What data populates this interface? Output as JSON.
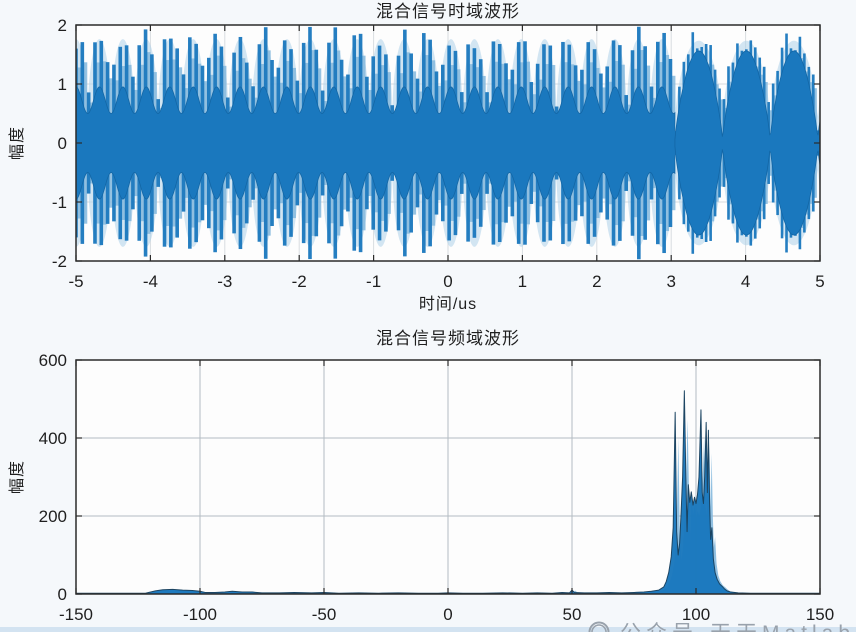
{
  "page": {
    "watermark": {
      "icon": "wechat-official-account-icon",
      "text": "公众号·天天Matlab"
    }
  },
  "colors": {
    "main_blue": "#1a78be",
    "deep_blue": "#1366a5",
    "light_blue": "#85b9de",
    "halo_blue": "#aed2ea",
    "dark_line": "#16405f",
    "grid": "#b4bbc2",
    "grid_faint": "#d8dce0",
    "axis": "#2b2b2b",
    "text": "#1f1f1f",
    "plot_bg": "#fdfdfd",
    "page_bg": "#f5f8fb",
    "bottom_strip": "#d3e3f1",
    "watermark": "#99a2ac"
  },
  "chart_data": [
    {
      "type": "line",
      "id": "time-domain",
      "title": "混合信号时域波形",
      "xlabel": "时间/us",
      "ylabel": "幅度",
      "xlim": [
        -5,
        5
      ],
      "ylim": [
        -2,
        2
      ],
      "xticks": [
        -5,
        -4,
        -3,
        -2,
        -1,
        0,
        1,
        2,
        3,
        4,
        5
      ],
      "yticks": [
        -2,
        -1,
        0,
        1,
        2
      ],
      "grid": true,
      "signal": {
        "description": "dense multi-component beat waveform, amplitude swings between -2 and 2; fast narrow beat lobes from -5us to ~3us, three wide pulse lobes from ~3us to 5us",
        "sections": [
          {
            "t0": -5,
            "t1": 3.05,
            "lobe_period": 0.315,
            "phase": 1.5708,
            "outer": {
              "base": 0.45,
              "amp": 1.55,
              "exp": 0.45
            },
            "solid": {
              "base": 0.5,
              "amp": 0.45,
              "exp": 2.0
            },
            "stripe_period": 0.085,
            "stripe_width": 3.6
          },
          {
            "t0": 3.05,
            "t1": 5,
            "lobe_period": 0.64,
            "phase": 0,
            "outer": {
              "base": 0.25,
              "amp": 1.72,
              "exp": 0.5
            },
            "solid": {
              "base": 0.06,
              "amp": 1.5,
              "exp": 0.8
            },
            "stripe_period": 0.06,
            "stripe_width": 2.6
          }
        ]
      }
    },
    {
      "type": "line",
      "id": "frequency-domain",
      "title": "混合信号频域波形",
      "xlabel": "",
      "ylabel": "幅度",
      "xlim": [
        -150,
        150
      ],
      "ylim": [
        0,
        600
      ],
      "xticks": [
        -150,
        -100,
        -50,
        0,
        50,
        100,
        150
      ],
      "yticks": [
        0,
        200,
        400,
        600
      ],
      "grid": true,
      "peaks": [
        {
          "freq": 91.6,
          "amp": 466
        },
        {
          "freq": 95.3,
          "amp": 521
        },
        {
          "freq": 102.0,
          "amp": 472
        },
        {
          "freq": 104.1,
          "amp": 440
        },
        {
          "freq": 104.9,
          "amp": 420
        }
      ],
      "series": [
        {
          "name": "spectrum",
          "points": [
            [
              -150,
              2
            ],
            [
              -122,
              2
            ],
            [
              -118,
              8
            ],
            [
              -115,
              11
            ],
            [
              -111,
              12
            ],
            [
              -107,
              10
            ],
            [
              -103,
              9
            ],
            [
              -100,
              7
            ],
            [
              -98,
              4
            ],
            [
              -94,
              4
            ],
            [
              -90,
              5
            ],
            [
              -87,
              7
            ],
            [
              -83,
              5
            ],
            [
              -79,
              5
            ],
            [
              -75,
              3
            ],
            [
              -68,
              3
            ],
            [
              -62,
              4
            ],
            [
              -55,
              3
            ],
            [
              -50,
              4
            ],
            [
              -44,
              2
            ],
            [
              -36,
              3
            ],
            [
              -28,
              2
            ],
            [
              -20,
              3
            ],
            [
              -12,
              2
            ],
            [
              -4,
              2
            ],
            [
              0,
              3
            ],
            [
              6,
              2
            ],
            [
              14,
              2
            ],
            [
              22,
              3
            ],
            [
              30,
              2
            ],
            [
              36,
              3
            ],
            [
              42,
              2
            ],
            [
              46,
              4
            ],
            [
              49,
              3
            ],
            [
              50,
              10
            ],
            [
              51,
              4
            ],
            [
              55,
              3
            ],
            [
              60,
              3
            ],
            [
              65,
              4
            ],
            [
              70,
              3
            ],
            [
              75,
              4
            ],
            [
              79,
              5
            ],
            [
              82,
              7
            ],
            [
              85,
              10
            ],
            [
              87,
              18
            ],
            [
              88,
              32
            ],
            [
              89,
              55
            ],
            [
              90,
              95
            ],
            [
              90.8,
              170
            ],
            [
              91.6,
              466
            ],
            [
              92.2,
              160
            ],
            [
              92.8,
              100
            ],
            [
              93.4,
              130
            ],
            [
              94,
              210
            ],
            [
              94.6,
              300
            ],
            [
              95.3,
              521
            ],
            [
              95.9,
              300
            ],
            [
              96.4,
              160
            ],
            [
              96.9,
              280
            ],
            [
              97.5,
              235
            ],
            [
              98.1,
              262
            ],
            [
              98.8,
              228
            ],
            [
              99.4,
              248
            ],
            [
              100,
              232
            ],
            [
              100.6,
              255
            ],
            [
              101.2,
              300
            ],
            [
              102,
              472
            ],
            [
              102.5,
              260
            ],
            [
              103,
              232
            ],
            [
              103.5,
              300
            ],
            [
              104.1,
              440
            ],
            [
              104.6,
              260
            ],
            [
              105,
              420
            ],
            [
              105.5,
              230
            ],
            [
              105.9,
              140
            ],
            [
              106.4,
              170
            ],
            [
              107,
              90
            ],
            [
              107.7,
              55
            ],
            [
              108.5,
              38
            ],
            [
              109.5,
              26
            ],
            [
              110.5,
              20
            ],
            [
              111.5,
              13
            ],
            [
              112.5,
              8
            ],
            [
              114,
              5
            ],
            [
              117,
              3
            ],
            [
              122,
              2
            ],
            [
              150,
              2
            ]
          ]
        }
      ]
    }
  ]
}
